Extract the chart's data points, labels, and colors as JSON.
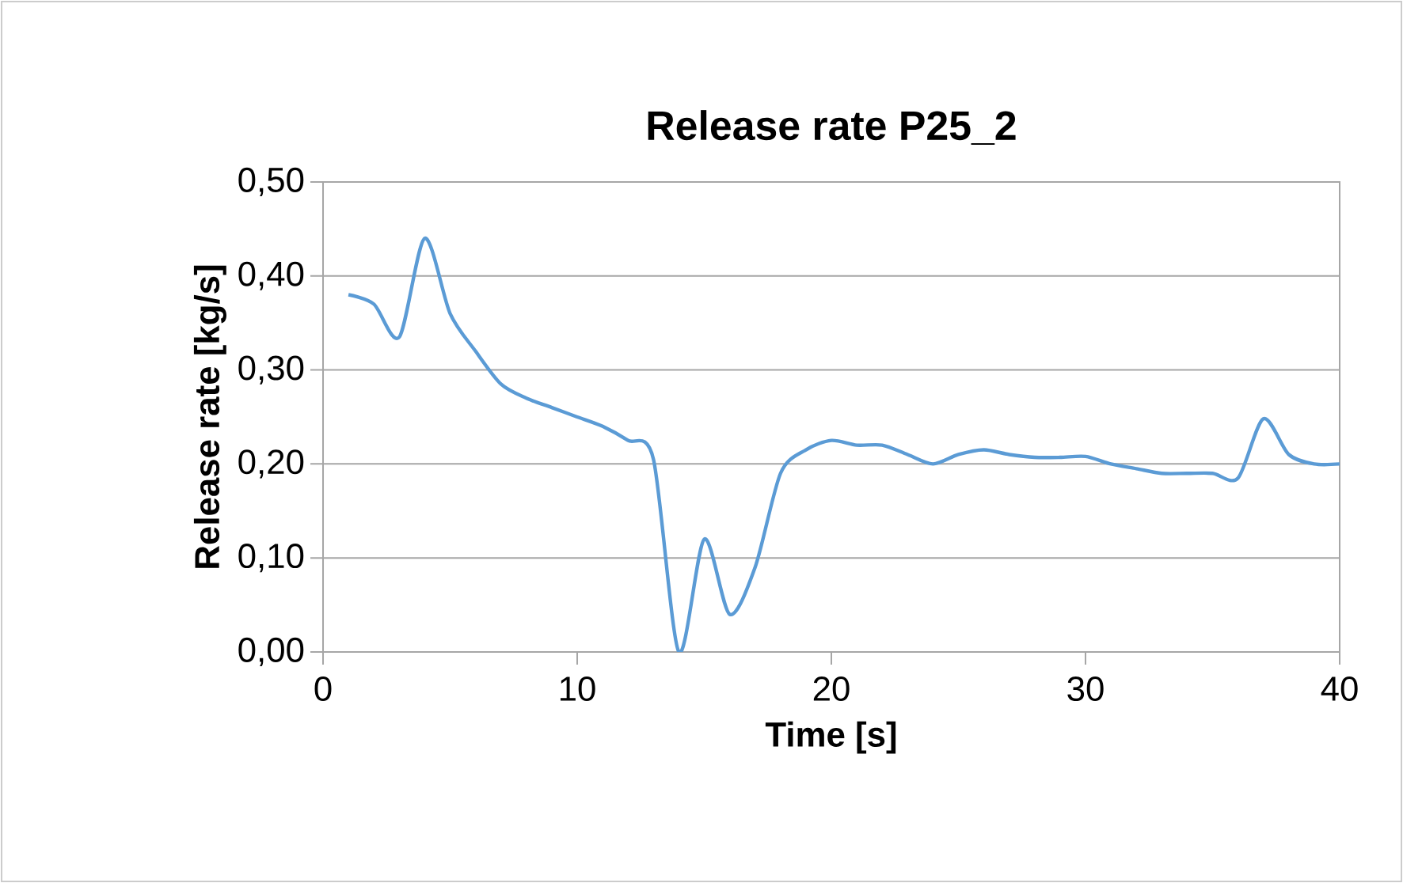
{
  "chart_data": {
    "type": "line",
    "title": "Release rate P25_2",
    "xlabel": "Time [s]",
    "ylabel": "Release rate [kg/s]",
    "x": [
      1,
      2,
      3,
      4,
      5,
      6,
      7,
      8,
      9,
      10,
      11,
      12,
      13,
      14,
      15,
      16,
      17,
      18,
      19,
      20,
      21,
      22,
      23,
      24,
      25,
      26,
      27,
      28,
      29,
      30,
      31,
      32,
      33,
      34,
      35,
      36,
      37,
      38,
      39,
      40
    ],
    "series": [
      {
        "color": "#5b9bd5",
        "values": [
          0.38,
          0.37,
          0.335,
          0.44,
          0.36,
          0.32,
          0.285,
          0.27,
          0.26,
          0.25,
          0.24,
          0.225,
          0.205,
          0.0,
          0.12,
          0.04,
          0.09,
          0.19,
          0.215,
          0.225,
          0.22,
          0.22,
          0.21,
          0.2,
          0.21,
          0.215,
          0.21,
          0.207,
          0.207,
          0.208,
          0.2,
          0.195,
          0.19,
          0.19,
          0.19,
          0.185,
          0.248,
          0.21,
          0.2,
          0.2
        ]
      }
    ],
    "xlim": [
      0,
      40
    ],
    "xticks": [
      0,
      10,
      20,
      30,
      40
    ],
    "ylim": [
      0,
      0.5
    ],
    "yticks": [
      {
        "value": 0,
        "label": "0,00"
      },
      {
        "value": 0.1,
        "label": "0,10"
      },
      {
        "value": 0.2,
        "label": "0,20"
      },
      {
        "value": 0.3,
        "label": "0,30"
      },
      {
        "value": 0.4,
        "label": "0,40"
      },
      {
        "value": 0.5,
        "label": "0,50"
      }
    ],
    "grid": "y",
    "marker": "none",
    "line_style": "solid"
  }
}
